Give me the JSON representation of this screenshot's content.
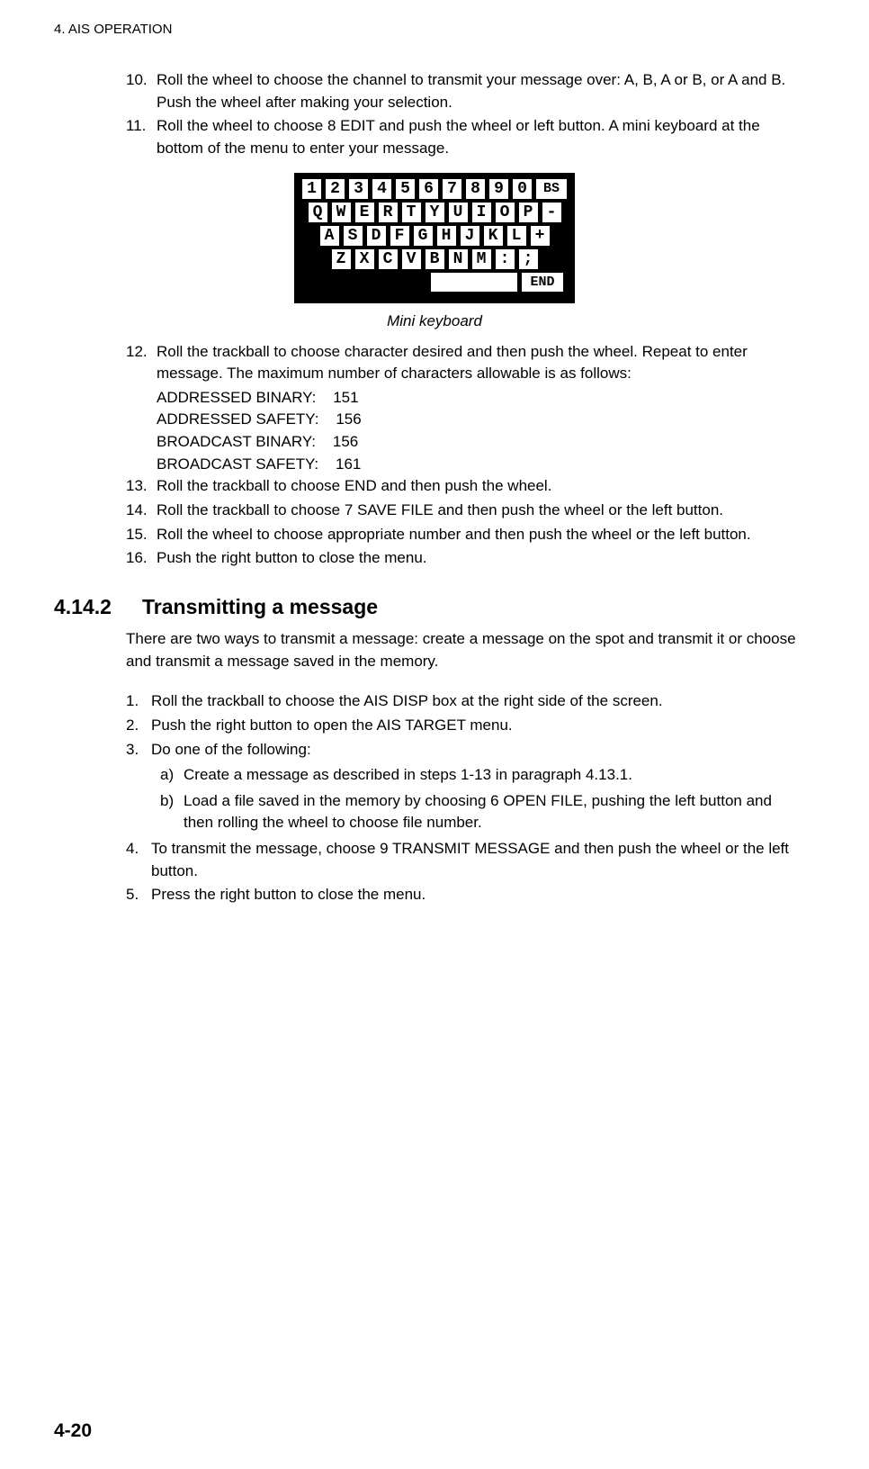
{
  "chapter_header": "4. AIS OPERATION",
  "steps_top": [
    {
      "num": "10.",
      "text": "Roll the wheel to choose the channel to transmit your message over: A, B, A or B, or A and B. Push the wheel after making your selection."
    },
    {
      "num": "11.",
      "text": "Roll the wheel to choose 8 EDIT and push the wheel or left button. A mini keyboard at the bottom of the menu to enter your message."
    }
  ],
  "keyboard": {
    "rows": [
      [
        "1",
        "2",
        "3",
        "4",
        "5",
        "6",
        "7",
        "8",
        "9",
        "0",
        "BS"
      ],
      [
        "Q",
        "W",
        "E",
        "R",
        "T",
        "Y",
        "U",
        "I",
        "O",
        "P",
        "-"
      ],
      [
        "A",
        "S",
        "D",
        "F",
        "G",
        "H",
        "J",
        "K",
        "L",
        "+"
      ],
      [
        "Z",
        "X",
        "C",
        "V",
        "B",
        "N",
        "M",
        ":",
        ";"
      ]
    ],
    "space": " ",
    "end": "END"
  },
  "keyboard_caption": "Mini keyboard",
  "step12": {
    "num": "12.",
    "text": "Roll the trackball to choose character desired and then push the wheel. Repeat to enter message. The maximum number of characters allowable is as follows:"
  },
  "char_limits": [
    "ADDRESSED BINARY:    151",
    "ADDRESSED SAFETY:    156",
    "BROADCAST BINARY:    156",
    "BROADCAST SAFETY:    161"
  ],
  "steps_mid": [
    {
      "num": "13.",
      "text": "Roll the trackball to choose END and then push the wheel."
    },
    {
      "num": "14.",
      "text": "Roll the trackball to choose 7 SAVE FILE and then push the wheel or the left button."
    },
    {
      "num": "15.",
      "text": "Roll the wheel to choose appropriate number and then push the wheel or the left button."
    },
    {
      "num": "16.",
      "text": "Push the right button to close the menu."
    }
  ],
  "section": {
    "num": "4.14.2",
    "title": "Transmitting a message"
  },
  "section_intro": "There are two ways to transmit a message: create a message on the spot and transmit it or choose and transmit a message saved in the memory.",
  "steps_bottom": [
    {
      "num": "1.",
      "text": "Roll the trackball to choose the AIS DISP box at the right side of the screen."
    },
    {
      "num": "2.",
      "text": "Push the right button to open the AIS TARGET menu."
    },
    {
      "num": "3.",
      "text": "Do one of the following:"
    }
  ],
  "sub_steps": [
    {
      "marker": "a)",
      "text": "Create a message as described in steps 1-13 in paragraph 4.13.1."
    },
    {
      "marker": "b)",
      "text": "Load a file saved in the memory by choosing 6 OPEN FILE, pushing the left button and then rolling the wheel to choose file number."
    }
  ],
  "steps_bottom2": [
    {
      "num": "4.",
      "text": "To transmit the message, choose 9 TRANSMIT MESSAGE and then push the wheel or the left button."
    },
    {
      "num": "5.",
      "text": "Press the right button to close the menu."
    }
  ],
  "page_num": "4-20"
}
